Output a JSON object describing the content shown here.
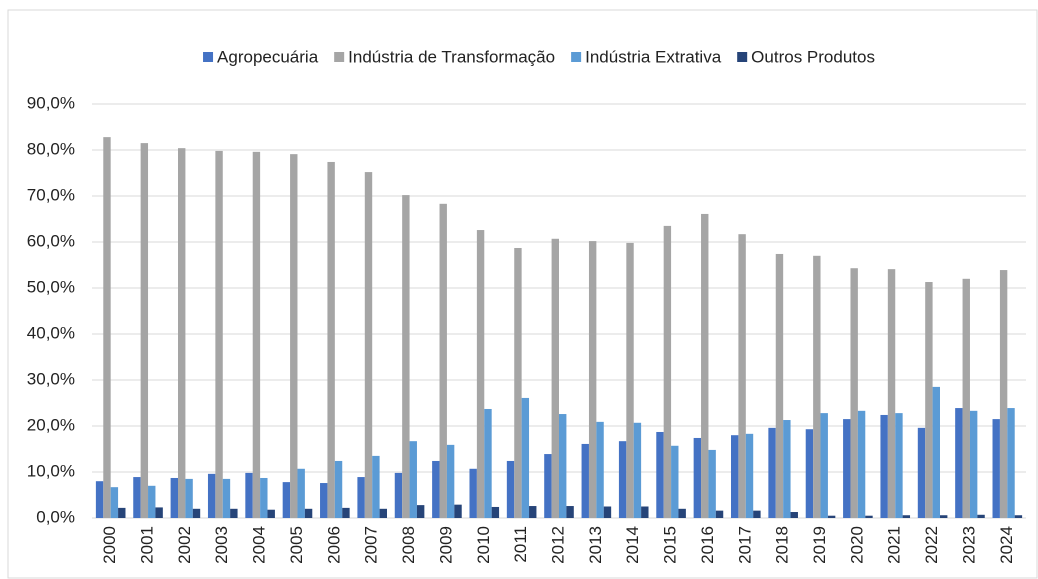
{
  "chart_data": {
    "type": "bar",
    "categories": [
      "2000",
      "2001",
      "2002",
      "2003",
      "2004",
      "2005",
      "2006",
      "2007",
      "2008",
      "2009",
      "2010",
      "2011",
      "2012",
      "2013",
      "2014",
      "2015",
      "2016",
      "2017",
      "2018",
      "2019",
      "2020",
      "2021",
      "2022",
      "2023",
      "2024"
    ],
    "series": [
      {
        "name": "Agropecuária",
        "color": "#4472c4",
        "values": [
          8.0,
          8.9,
          8.7,
          9.6,
          9.8,
          7.8,
          7.6,
          8.9,
          9.8,
          12.4,
          10.7,
          12.4,
          13.9,
          16.1,
          16.7,
          18.7,
          17.4,
          18.0,
          19.6,
          19.3,
          21.5,
          22.4,
          19.6,
          23.9,
          21.5
        ]
      },
      {
        "name": "Indústria de Transformação",
        "color": "#a5a5a5",
        "values": [
          82.8,
          81.5,
          80.4,
          79.8,
          79.6,
          79.1,
          77.4,
          75.2,
          70.2,
          68.3,
          62.6,
          58.7,
          60.7,
          60.2,
          59.8,
          63.5,
          66.1,
          61.7,
          57.4,
          57.0,
          54.3,
          54.1,
          51.3,
          52.0,
          53.9
        ]
      },
      {
        "name": "Indústria Extrativa",
        "color": "#5b9bd5",
        "values": [
          6.7,
          7.0,
          8.5,
          8.5,
          8.7,
          10.7,
          12.4,
          13.5,
          16.7,
          15.9,
          23.7,
          26.1,
          22.6,
          20.9,
          20.7,
          15.7,
          14.8,
          18.3,
          21.3,
          22.8,
          23.3,
          22.8,
          28.5,
          23.3,
          23.9
        ]
      },
      {
        "name": "Outros Produtos",
        "color": "#264478",
        "values": [
          2.2,
          2.3,
          2.0,
          2.0,
          1.8,
          2.0,
          2.2,
          2.0,
          2.8,
          2.9,
          2.4,
          2.6,
          2.6,
          2.5,
          2.5,
          2.0,
          1.6,
          1.6,
          1.3,
          0.5,
          0.5,
          0.6,
          0.6,
          0.7,
          0.6
        ]
      }
    ],
    "ylim": [
      0,
      90
    ],
    "yticks": [
      {
        "value": 0,
        "label": "0,0%"
      },
      {
        "value": 10,
        "label": "10,0%"
      },
      {
        "value": 20,
        "label": "20,0%"
      },
      {
        "value": 30,
        "label": "30,0%"
      },
      {
        "value": 40,
        "label": "40,0%"
      },
      {
        "value": 50,
        "label": "50,0%"
      },
      {
        "value": 60,
        "label": "60,0%"
      },
      {
        "value": 70,
        "label": "70,0%"
      },
      {
        "value": 80,
        "label": "80,0%"
      },
      {
        "value": 90,
        "label": "90,0%"
      }
    ],
    "grid": true,
    "legend": "top"
  }
}
